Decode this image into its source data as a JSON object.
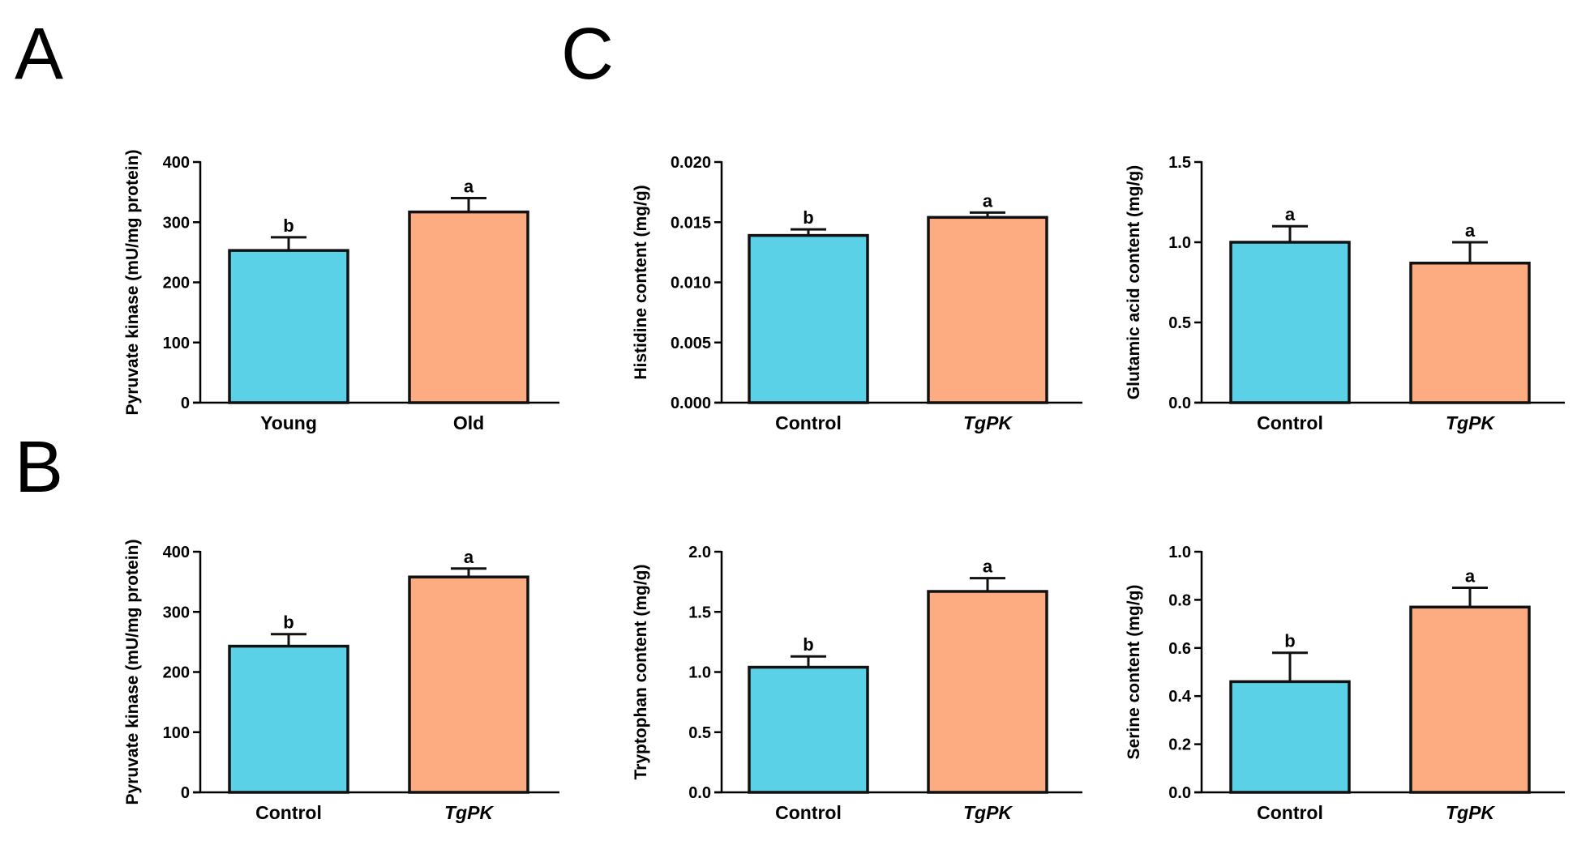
{
  "panels": [
    {
      "letter": "A"
    },
    {
      "letter": "B"
    },
    {
      "letter": "C"
    }
  ],
  "colors": {
    "control_bar": "#5BD1E8",
    "treatment_bar": "#FDAC82"
  },
  "chart_data": [
    {
      "id": "A",
      "type": "bar",
      "ylabel": "Pyruvate kinase (mU/mg protein)",
      "categories": [
        "Young",
        "Old"
      ],
      "italic_categories": [
        false,
        false
      ],
      "values": [
        253,
        317
      ],
      "errors": [
        22,
        23
      ],
      "significance": [
        "b",
        "a"
      ],
      "ylim": [
        0,
        400
      ],
      "yticks": [
        0,
        100,
        200,
        300,
        400
      ],
      "ytick_labels": [
        "0",
        "100",
        "200",
        "300",
        "400"
      ]
    },
    {
      "id": "B",
      "type": "bar",
      "ylabel": "Pyruvate kinase (mU/mg protein)",
      "categories": [
        "Control",
        "TgPK"
      ],
      "italic_categories": [
        false,
        true
      ],
      "values": [
        243,
        358
      ],
      "errors": [
        20,
        14
      ],
      "significance": [
        "b",
        "a"
      ],
      "ylim": [
        0,
        400
      ],
      "yticks": [
        0,
        100,
        200,
        300,
        400
      ],
      "ytick_labels": [
        "0",
        "100",
        "200",
        "300",
        "400"
      ]
    },
    {
      "id": "C1",
      "type": "bar",
      "ylabel": "Histidine content (mg/g)",
      "categories": [
        "Control",
        "TgPK"
      ],
      "italic_categories": [
        false,
        true
      ],
      "values": [
        0.0139,
        0.0154
      ],
      "errors": [
        0.0005,
        0.0004
      ],
      "significance": [
        "b",
        "a"
      ],
      "ylim": [
        0,
        0.02
      ],
      "yticks": [
        0,
        0.005,
        0.01,
        0.015,
        0.02
      ],
      "ytick_labels": [
        "0.000",
        "0.005",
        "0.010",
        "0.015",
        "0.020"
      ]
    },
    {
      "id": "C2",
      "type": "bar",
      "ylabel": "Glutamic acid content (mg/g)",
      "categories": [
        "Control",
        "TgPK"
      ],
      "italic_categories": [
        false,
        true
      ],
      "values": [
        1.0,
        0.87
      ],
      "errors": [
        0.1,
        0.13
      ],
      "significance": [
        "a",
        "a"
      ],
      "ylim": [
        0,
        1.5
      ],
      "yticks": [
        0,
        0.5,
        1.0,
        1.5
      ],
      "ytick_labels": [
        "0.0",
        "0.5",
        "1.0",
        "1.5"
      ]
    },
    {
      "id": "C3",
      "type": "bar",
      "ylabel": "Tryptophan content (mg/g)",
      "categories": [
        "Control",
        "TgPK"
      ],
      "italic_categories": [
        false,
        true
      ],
      "values": [
        1.04,
        1.67
      ],
      "errors": [
        0.09,
        0.11
      ],
      "significance": [
        "b",
        "a"
      ],
      "ylim": [
        0,
        2.0
      ],
      "yticks": [
        0,
        0.5,
        1.0,
        1.5,
        2.0
      ],
      "ytick_labels": [
        "0.0",
        "0.5",
        "1.0",
        "1.5",
        "2.0"
      ]
    },
    {
      "id": "C4",
      "type": "bar",
      "ylabel": "Serine content (mg/g)",
      "categories": [
        "Control",
        "TgPK"
      ],
      "italic_categories": [
        false,
        true
      ],
      "values": [
        0.46,
        0.77
      ],
      "errors": [
        0.12,
        0.08
      ],
      "significance": [
        "b",
        "a"
      ],
      "ylim": [
        0,
        1.0
      ],
      "yticks": [
        0,
        0.2,
        0.4,
        0.6,
        0.8,
        1.0
      ],
      "ytick_labels": [
        "0.0",
        "0.2",
        "0.4",
        "0.6",
        "0.8",
        "1.0"
      ]
    }
  ]
}
